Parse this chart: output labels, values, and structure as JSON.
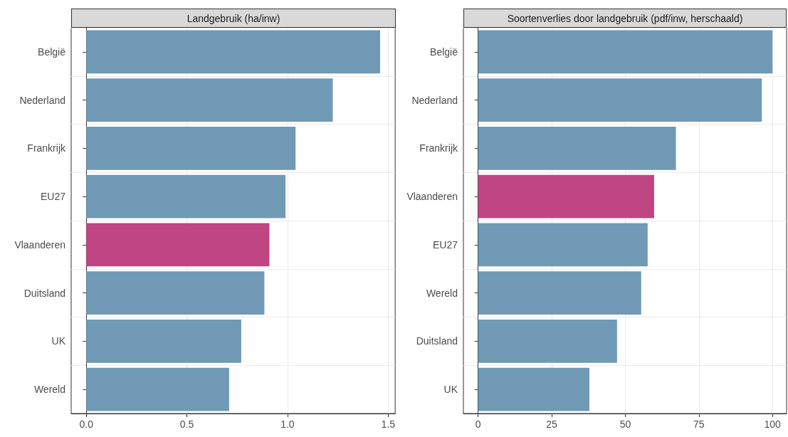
{
  "chart_data": [
    {
      "type": "bar",
      "orientation": "horizontal",
      "title": "Landgebruik (ha/inw)",
      "categories": [
        "België",
        "Nederland",
        "Frankrijk",
        "EU27",
        "Vlaanderen",
        "Duitsland",
        "UK",
        "Wereld"
      ],
      "values": [
        1.46,
        1.225,
        1.04,
        0.99,
        0.91,
        0.885,
        0.77,
        0.71
      ],
      "colors": [
        "#7099b6",
        "#7099b6",
        "#7099b6",
        "#7099b6",
        "#bf4683",
        "#7099b6",
        "#7099b6",
        "#7099b6"
      ],
      "xlim": [
        -0.075,
        1.535
      ],
      "xticks": [
        {
          "value": 0,
          "label": "0.0"
        },
        0.5,
        {
          "value": 1,
          "label": "1.0"
        },
        1.5
      ],
      "grid": true
    },
    {
      "type": "bar",
      "orientation": "horizontal",
      "title": "Soortenverlies door landgebruik (pdf/inw, herschaald)",
      "categories": [
        "België",
        "Nederland",
        "Frankrijk",
        "Vlaanderen",
        "EU27",
        "Wereld",
        "Duitsland",
        "UK"
      ],
      "values": [
        100,
        96.4,
        67.2,
        59.8,
        57.6,
        55.4,
        47.2,
        37.8
      ],
      "colors": [
        "#7099b6",
        "#7099b6",
        "#7099b6",
        "#bf4683",
        "#7099b6",
        "#7099b6",
        "#7099b6",
        "#7099b6"
      ],
      "xlim": [
        -5,
        104.8
      ],
      "xticks": [
        0,
        25,
        50,
        75,
        100
      ],
      "grid": true
    }
  ]
}
